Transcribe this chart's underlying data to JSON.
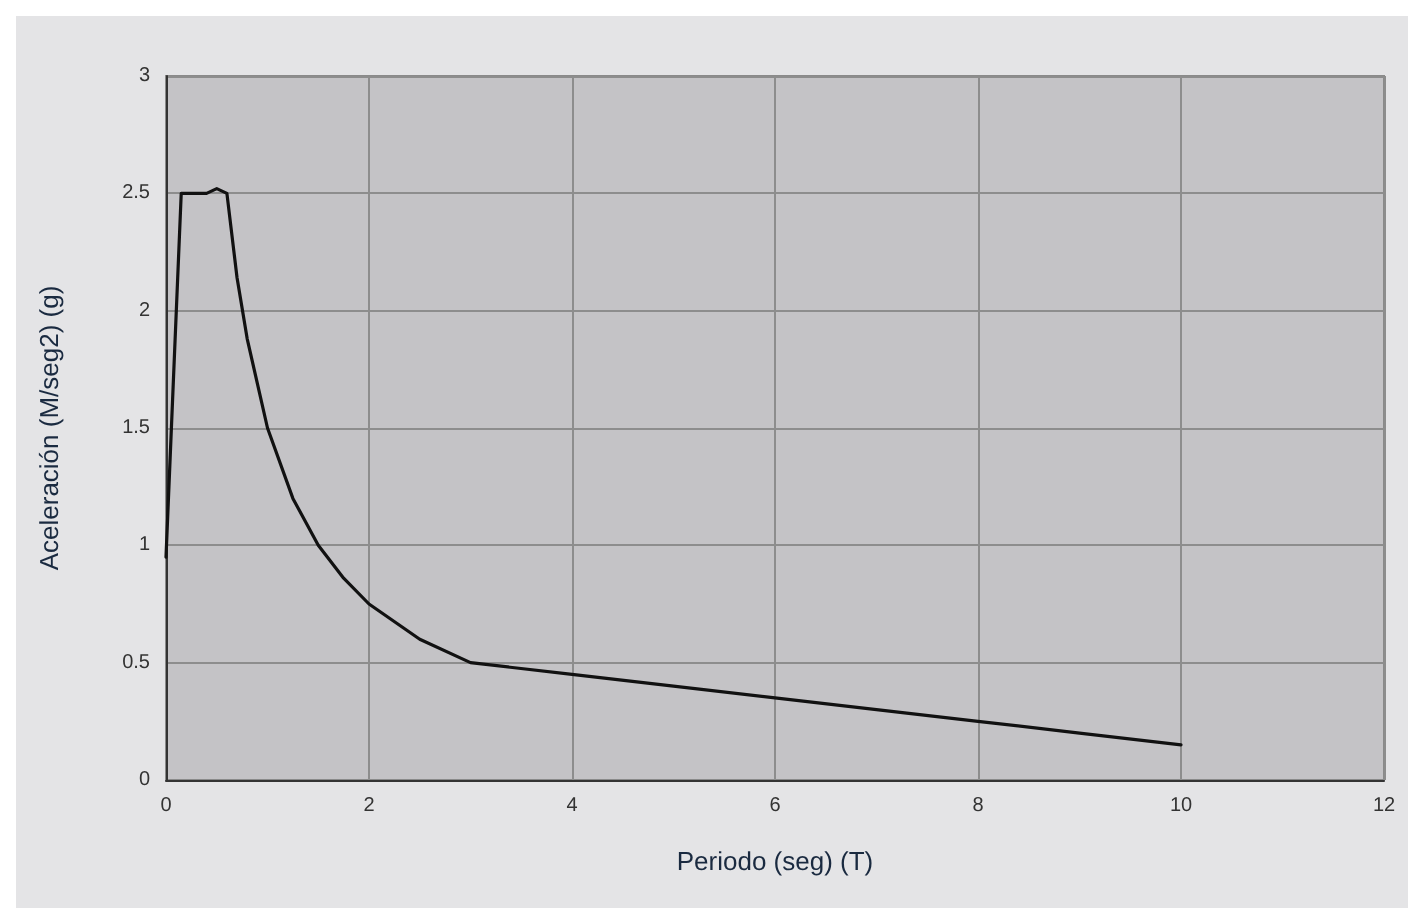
{
  "chart_data": {
    "type": "line",
    "xlabel": "Periodo (seg) (T)",
    "ylabel": "Aceleración (M/seg2) (g)",
    "series": [
      {
        "color": "#111111",
        "x": [
          0,
          0.15,
          0.4,
          0.5,
          0.6,
          0.7,
          0.8,
          1,
          1.25,
          1.5,
          1.75,
          2,
          2.5,
          3,
          4,
          5,
          6,
          7,
          8,
          9,
          10
        ],
        "values": [
          0.95,
          2.5,
          2.5,
          2.52,
          2.5,
          2.14,
          1.88,
          1.5,
          1.2,
          1.0,
          0.86,
          0.75,
          0.6,
          0.5,
          0.45,
          0.4,
          0.35,
          0.3,
          0.25,
          0.2,
          0.15
        ]
      }
    ],
    "xlim": [
      0,
      12
    ],
    "xticks": [
      0,
      2,
      4,
      6,
      8,
      10,
      12
    ],
    "ylim": [
      0,
      3
    ],
    "yticks": [
      0,
      0.5,
      1,
      1.5,
      2,
      2.5,
      3
    ],
    "grid": true,
    "marker": "none",
    "line_style": "solid"
  }
}
